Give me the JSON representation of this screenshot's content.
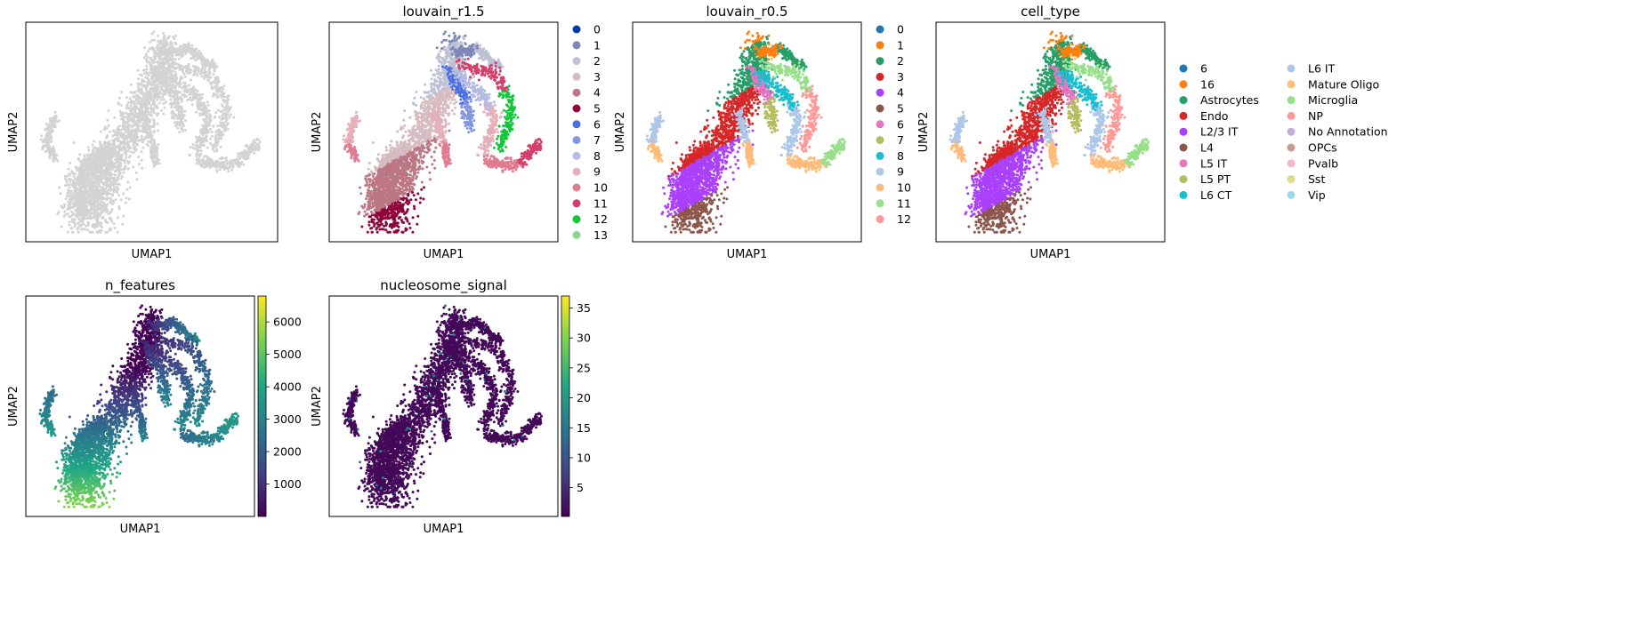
{
  "chart_data": [
    {
      "type": "scatter",
      "title": "",
      "xlabel": "UMAP1",
      "ylabel": "UMAP2",
      "color": "#d3d3d3"
    },
    {
      "type": "scatter",
      "title": "louvain_r1.5",
      "xlabel": "UMAP1",
      "ylabel": "UMAP2",
      "legend": {
        "placement": "right",
        "entries": [
          {
            "label": "0",
            "color": "#023fa5"
          },
          {
            "label": "1",
            "color": "#7d87b9"
          },
          {
            "label": "2",
            "color": "#bec1d4"
          },
          {
            "label": "3",
            "color": "#d6bcc0"
          },
          {
            "label": "4",
            "color": "#bb7784"
          },
          {
            "label": "5",
            "color": "#8e063b"
          },
          {
            "label": "6",
            "color": "#4a6fe3"
          },
          {
            "label": "7",
            "color": "#8595e1"
          },
          {
            "label": "8",
            "color": "#b5bbe3"
          },
          {
            "label": "9",
            "color": "#e6afb9"
          },
          {
            "label": "10",
            "color": "#e07b91"
          },
          {
            "label": "11",
            "color": "#d33f6a"
          },
          {
            "label": "12",
            "color": "#11c638"
          },
          {
            "label": "13",
            "color": "#8dd593"
          }
        ]
      }
    },
    {
      "type": "scatter",
      "title": "louvain_r0.5",
      "xlabel": "UMAP1",
      "ylabel": "UMAP2",
      "legend": {
        "placement": "right",
        "entries": [
          {
            "label": "0",
            "color": "#1f77b4"
          },
          {
            "label": "1",
            "color": "#ff7f0e"
          },
          {
            "label": "2",
            "color": "#279e68"
          },
          {
            "label": "3",
            "color": "#d62728"
          },
          {
            "label": "4",
            "color": "#aa40fc"
          },
          {
            "label": "5",
            "color": "#8c564b"
          },
          {
            "label": "6",
            "color": "#e377c2"
          },
          {
            "label": "7",
            "color": "#b5bd61"
          },
          {
            "label": "8",
            "color": "#17becf"
          },
          {
            "label": "9",
            "color": "#aec7e8"
          },
          {
            "label": "10",
            "color": "#ffbb78"
          },
          {
            "label": "11",
            "color": "#98df8a"
          },
          {
            "label": "12",
            "color": "#ff9896"
          }
        ]
      }
    },
    {
      "type": "scatter",
      "title": "cell_type",
      "xlabel": "UMAP1",
      "ylabel": "UMAP2",
      "legend": {
        "placement": "right",
        "columns": 2,
        "entries": [
          {
            "label": "6",
            "color": "#1f77b4"
          },
          {
            "label": "16",
            "color": "#ff7f0e"
          },
          {
            "label": "Astrocytes",
            "color": "#279e68"
          },
          {
            "label": "Endo",
            "color": "#d62728"
          },
          {
            "label": "L2/3 IT",
            "color": "#aa40fc"
          },
          {
            "label": "L4",
            "color": "#8c564b"
          },
          {
            "label": "L5 IT",
            "color": "#e377c2"
          },
          {
            "label": "L5 PT",
            "color": "#b5bd61"
          },
          {
            "label": "L6 CT",
            "color": "#17becf"
          },
          {
            "label": "L6 IT",
            "color": "#aec7e8"
          },
          {
            "label": "Mature Oligo",
            "color": "#ffbb78"
          },
          {
            "label": "Microglia",
            "color": "#98df8a"
          },
          {
            "label": "NP",
            "color": "#ff9896"
          },
          {
            "label": "No Annotation",
            "color": "#c5b0d5"
          },
          {
            "label": "OPCs",
            "color": "#c49c94"
          },
          {
            "label": "Pvalb",
            "color": "#f7b6d2"
          },
          {
            "label": "Sst",
            "color": "#dbdb8d"
          },
          {
            "label": "Vip",
            "color": "#9edae5"
          }
        ]
      }
    },
    {
      "type": "scatter",
      "title": "n_features",
      "xlabel": "UMAP1",
      "ylabel": "UMAP2",
      "colormap": "viridis",
      "colorbar": {
        "min": 0,
        "max": 6800,
        "ticks": [
          1000,
          2000,
          3000,
          4000,
          5000,
          6000
        ]
      }
    },
    {
      "type": "scatter",
      "title": "nucleosome_signal",
      "xlabel": "UMAP1",
      "ylabel": "UMAP2",
      "colormap": "viridis",
      "colorbar": {
        "min": 0.2,
        "max": 37,
        "ticks": [
          5,
          10,
          15,
          20,
          25,
          30,
          35
        ]
      }
    }
  ]
}
